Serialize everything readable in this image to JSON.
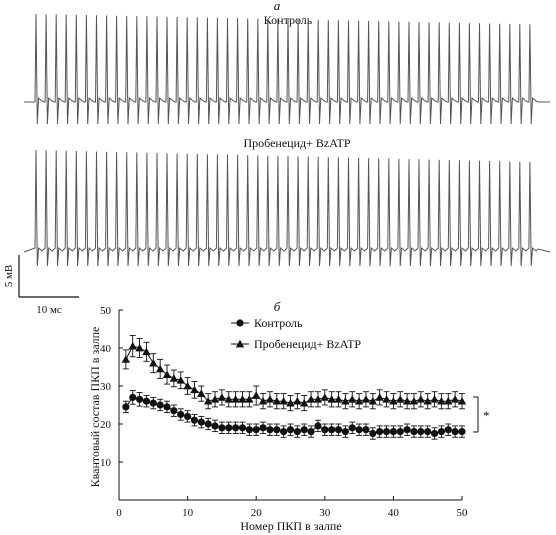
{
  "panel_a": {
    "letter": "а",
    "trace1_label": "Контроль",
    "trace2_label": "Пробенецид+ BzATP",
    "scale_voltage": "5 мВ",
    "scale_time": "10 мс",
    "spike_count": 50
  },
  "chart_data": {
    "type": "scatter",
    "panel_letter": "б",
    "xlabel": "Номер ПКП в залпе",
    "ylabel": "Квантовый состав ПКП в залпе",
    "xlim": [
      0,
      50
    ],
    "ylim": [
      0,
      50
    ],
    "xticks": [
      0,
      10,
      20,
      30,
      40,
      50
    ],
    "yticks": [
      10,
      20,
      30,
      40,
      50
    ],
    "legend_position": "top-left",
    "significance_label": "*",
    "x": [
      1,
      2,
      3,
      4,
      5,
      6,
      7,
      8,
      9,
      10,
      11,
      12,
      13,
      14,
      15,
      16,
      17,
      18,
      19,
      20,
      21,
      22,
      23,
      24,
      25,
      26,
      27,
      28,
      29,
      30,
      31,
      32,
      33,
      34,
      35,
      36,
      37,
      38,
      39,
      40,
      41,
      42,
      43,
      44,
      45,
      46,
      47,
      48,
      49,
      50
    ],
    "series": [
      {
        "name": "Контроль",
        "marker": "circle",
        "values": [
          24.5,
          27.0,
          26.5,
          26.0,
          25.5,
          25.0,
          24.5,
          23.5,
          22.5,
          22.0,
          21.0,
          20.5,
          20.0,
          19.5,
          19.0,
          19.0,
          19.0,
          19.0,
          18.5,
          18.5,
          19.0,
          18.5,
          18.5,
          18.0,
          18.5,
          18.0,
          18.5,
          18.0,
          19.5,
          18.5,
          18.5,
          18.5,
          18.0,
          19.0,
          18.5,
          18.5,
          17.5,
          18.0,
          18.0,
          18.0,
          18.0,
          18.5,
          18.0,
          18.0,
          18.0,
          17.5,
          18.0,
          18.5,
          18.0,
          18.0
        ],
        "errors": [
          1.5,
          1.8,
          1.8,
          1.5,
          1.5,
          1.5,
          1.5,
          1.5,
          1.5,
          1.5,
          1.5,
          1.5,
          1.5,
          1.5,
          1.5,
          1.5,
          1.5,
          1.5,
          1.5,
          1.5,
          1.5,
          1.5,
          1.5,
          1.5,
          1.5,
          1.5,
          1.5,
          1.5,
          1.5,
          1.5,
          1.5,
          1.5,
          1.5,
          1.5,
          1.5,
          1.5,
          1.5,
          1.5,
          1.5,
          1.5,
          1.5,
          1.5,
          1.5,
          1.5,
          1.5,
          1.5,
          1.5,
          1.5,
          1.5,
          1.5
        ]
      },
      {
        "name": "Пробенецид+ BzATP",
        "marker": "triangle",
        "values": [
          37.0,
          40.5,
          40.0,
          39.0,
          36.0,
          34.5,
          33.0,
          32.0,
          31.5,
          30.0,
          29.0,
          28.0,
          26.0,
          26.5,
          27.0,
          26.5,
          26.5,
          26.5,
          26.5,
          27.5,
          26.0,
          26.5,
          26.0,
          26.0,
          25.5,
          26.0,
          25.5,
          26.5,
          26.5,
          27.0,
          26.5,
          26.5,
          26.0,
          26.5,
          26.0,
          26.5,
          26.0,
          27.0,
          26.5,
          26.0,
          26.5,
          26.0,
          26.0,
          26.5,
          26.0,
          26.5,
          26.0,
          26.0,
          26.5,
          26.0
        ],
        "errors": [
          2.5,
          2.8,
          2.5,
          2.5,
          2.5,
          2.5,
          2.5,
          2.2,
          2.2,
          2.2,
          2.2,
          2.0,
          2.0,
          2.0,
          2.0,
          2.0,
          2.0,
          2.0,
          2.0,
          2.5,
          2.0,
          2.0,
          2.0,
          2.0,
          2.0,
          2.0,
          2.0,
          2.0,
          2.0,
          2.0,
          2.0,
          2.0,
          2.0,
          2.0,
          2.0,
          2.0,
          2.0,
          2.0,
          2.0,
          2.0,
          2.0,
          2.0,
          2.0,
          2.0,
          2.0,
          2.0,
          2.0,
          2.0,
          2.0,
          2.0
        ]
      }
    ]
  }
}
